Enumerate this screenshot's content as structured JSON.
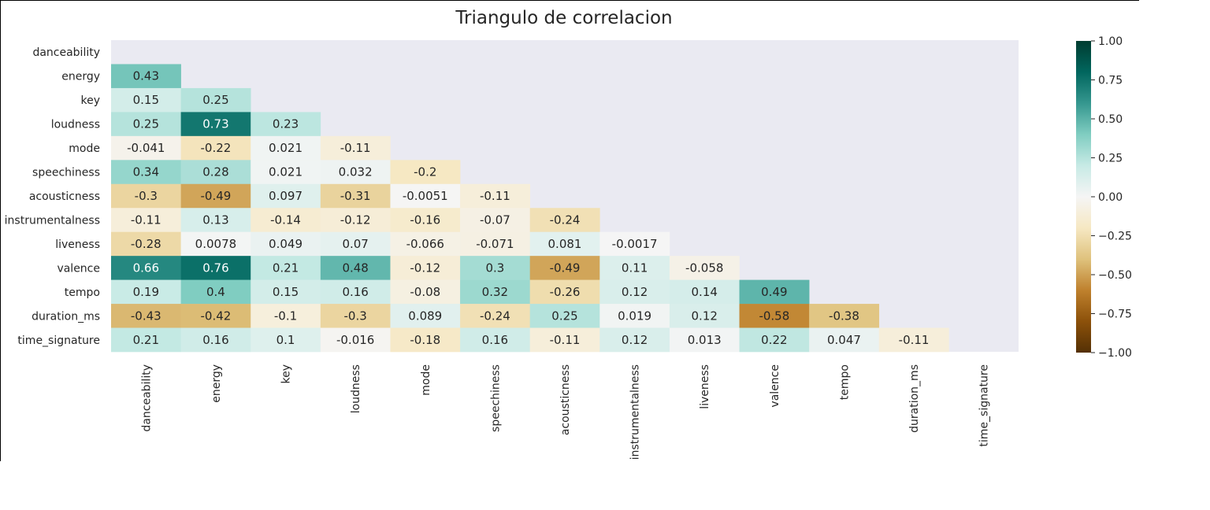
{
  "chart_data": {
    "type": "heatmap",
    "title": "Triangulo de correlacion",
    "variables": [
      "danceability",
      "energy",
      "key",
      "loudness",
      "mode",
      "speechiness",
      "acousticness",
      "instrumentalness",
      "liveness",
      "valence",
      "tempo",
      "duration_ms",
      "time_signature"
    ],
    "mask": "upper triangle including diagonal",
    "values": [
      [],
      [
        "0.43"
      ],
      [
        "0.15",
        "0.25"
      ],
      [
        "0.25",
        "0.73",
        "0.23"
      ],
      [
        "-0.041",
        "-0.22",
        "0.021",
        "-0.11"
      ],
      [
        "0.34",
        "0.28",
        "0.021",
        "0.032",
        "-0.2"
      ],
      [
        "-0.3",
        "-0.49",
        "0.097",
        "-0.31",
        "-0.0051",
        "-0.11"
      ],
      [
        "-0.11",
        "0.13",
        "-0.14",
        "-0.12",
        "-0.16",
        "-0.07",
        "-0.24"
      ],
      [
        "-0.28",
        "0.0078",
        "0.049",
        "0.07",
        "-0.066",
        "-0.071",
        "0.081",
        "-0.0017"
      ],
      [
        "0.66",
        "0.76",
        "0.21",
        "0.48",
        "-0.12",
        "0.3",
        "-0.49",
        "0.11",
        "-0.058"
      ],
      [
        "0.19",
        "0.4",
        "0.15",
        "0.16",
        "-0.08",
        "0.32",
        "-0.26",
        "0.12",
        "0.14",
        "0.49"
      ],
      [
        "-0.43",
        "-0.42",
        "-0.1",
        "-0.3",
        "0.089",
        "-0.24",
        "0.25",
        "0.019",
        "0.12",
        "-0.58",
        "-0.38"
      ],
      [
        "0.21",
        "0.16",
        "0.1",
        "-0.016",
        "-0.18",
        "0.16",
        "-0.11",
        "0.12",
        "0.013",
        "0.22",
        "0.047",
        "-0.11"
      ]
    ],
    "vmin": -1.0,
    "vmax": 1.0,
    "colormap": "BrBG",
    "colorbar_ticks": [
      "1.00",
      "0.75",
      "0.50",
      "0.25",
      "0.00",
      "−0.25",
      "−0.50",
      "−0.75",
      "−1.00"
    ],
    "colorbar_tick_values": [
      1.0,
      0.75,
      0.5,
      0.25,
      0.0,
      -0.25,
      -0.5,
      -0.75,
      -1.0
    ],
    "background_color": "#eaeaf2"
  }
}
